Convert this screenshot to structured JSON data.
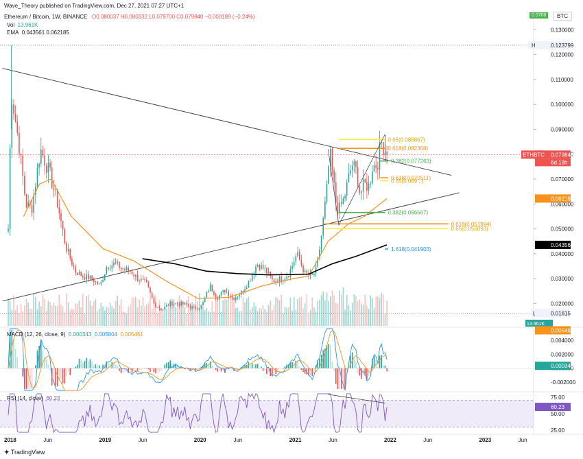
{
  "header": {
    "publisher": "Wave_Theory published on TradingView.com, Dec 27, 2021 07:27 UTC+1",
    "symbol": "Ethereum / Bitcoin, 1W, BINANCE",
    "ohlc": "O0.080037  H0.080332  L0.079700  C0.079840  −0.000189 (−0.24%)",
    "vol_label": "Vol",
    "vol_value": "13.961K",
    "ema_label": "EMA",
    "ema_values": "0.043561  0.062185",
    "currency": "BTC",
    "top_badge": "0.0706"
  },
  "macd_header": {
    "label": "MACD (12, 26, close, 9)",
    "v1": "0.000343",
    "v2": "0.005804",
    "v3": "0.005461"
  },
  "rsi_header": {
    "label": "RSI (14, close)",
    "value": "60.23"
  },
  "footer": {
    "brand": "TradingView"
  },
  "chart_data": [
    {
      "type": "candlestick",
      "title": "Ethereum / Bitcoin, 1W, BINANCE",
      "ylim": [
        0.011,
        0.137
      ],
      "y_ticks": [
        "0.130000",
        "0.120000",
        "0.110000",
        "0.100000",
        "0.090000",
        "0.080000",
        "0.070000",
        "0.060000",
        "0.050000",
        "0.040000",
        "0.030000",
        "0.020000"
      ],
      "x_ticks": [
        "2018",
        "Jun",
        "2019",
        "Jun",
        "2020",
        "Jun",
        "2021",
        "Jun",
        "2022",
        "Jun",
        "2023",
        "Jun"
      ],
      "anchors_close": [
        [
          "2018-01-01",
          0.05
        ],
        [
          "2018-01-13",
          0.105
        ],
        [
          "2018-02-10",
          0.085
        ],
        [
          "2018-03-10",
          0.06
        ],
        [
          "2018-04-01",
          0.058
        ],
        [
          "2018-05-05",
          0.082
        ],
        [
          "2018-06-10",
          0.072
        ],
        [
          "2018-07-10",
          0.06
        ],
        [
          "2018-08-10",
          0.043
        ],
        [
          "2018-09-15",
          0.033
        ],
        [
          "2018-10-15",
          0.031
        ],
        [
          "2018-11-20",
          0.03
        ],
        [
          "2018-12-20",
          0.027
        ],
        [
          "2019-01-15",
          0.035
        ],
        [
          "2019-02-15",
          0.036
        ],
        [
          "2019-03-15",
          0.034
        ],
        [
          "2019-04-15",
          0.033
        ],
        [
          "2019-05-15",
          0.03
        ],
        [
          "2019-06-15",
          0.028
        ],
        [
          "2019-07-15",
          0.02
        ],
        [
          "2019-08-15",
          0.0175
        ],
        [
          "2019-09-15",
          0.02
        ],
        [
          "2019-10-15",
          0.02
        ],
        [
          "2019-11-15",
          0.0195
        ],
        [
          "2019-12-15",
          0.018
        ],
        [
          "2020-01-15",
          0.019
        ],
        [
          "2020-02-15",
          0.027
        ],
        [
          "2020-03-15",
          0.0225
        ],
        [
          "2020-04-15",
          0.0255
        ],
        [
          "2020-05-15",
          0.022
        ],
        [
          "2020-06-15",
          0.0245
        ],
        [
          "2020-07-15",
          0.029
        ],
        [
          "2020-08-15",
          0.036
        ],
        [
          "2020-09-15",
          0.0335
        ],
        [
          "2020-10-15",
          0.029
        ],
        [
          "2020-11-15",
          0.03
        ],
        [
          "2020-12-15",
          0.032
        ],
        [
          "2021-01-15",
          0.04
        ],
        [
          "2021-02-15",
          0.032
        ],
        [
          "2021-03-15",
          0.031
        ],
        [
          "2021-04-01",
          0.034
        ],
        [
          "2021-04-20",
          0.048
        ],
        [
          "2021-05-15",
          0.07
        ],
        [
          "2021-05-20",
          0.082
        ],
        [
          "2021-06-15",
          0.06
        ],
        [
          "2021-06-25",
          0.0575
        ],
        [
          "2021-07-15",
          0.062
        ],
        [
          "2021-08-01",
          0.07
        ],
        [
          "2021-08-15",
          0.076
        ],
        [
          "2021-09-01",
          0.073
        ],
        [
          "2021-09-15",
          0.064
        ],
        [
          "2021-10-01",
          0.068
        ],
        [
          "2021-10-20",
          0.067
        ],
        [
          "2021-11-01",
          0.075
        ],
        [
          "2021-11-20",
          0.076
        ],
        [
          "2021-12-05",
          0.085
        ],
        [
          "2021-12-27",
          0.0798
        ]
      ],
      "last": {
        "open": 0.080037,
        "high": 0.080332,
        "low": 0.0797,
        "close": 0.07984
      },
      "high_line": {
        "label": "High",
        "value": 0.123799
      },
      "low_line": {
        "label": "Low",
        "value": 0.01615
      },
      "price_labels": [
        {
          "name": "ETHBTC",
          "value": "0.079840",
          "sub": "6d 18h",
          "color": "#ef5350"
        },
        {
          "name": "EMA 1",
          "value": "0.062185",
          "color": "#f7931a"
        },
        {
          "name": "EMA 2",
          "value": "0.043561",
          "color": "#000000"
        }
      ],
      "ema_fast": {
        "name": "EMA",
        "value": 0.062185,
        "color": "#f7931a",
        "points": [
          [
            "2018-03-01",
            0.055
          ],
          [
            "2018-05-01",
            0.068
          ],
          [
            "2018-06-15",
            0.07
          ],
          [
            "2018-09-01",
            0.055
          ],
          [
            "2019-01-01",
            0.042
          ],
          [
            "2019-05-01",
            0.037
          ],
          [
            "2019-09-01",
            0.029
          ],
          [
            "2020-01-01",
            0.022
          ],
          [
            "2020-05-01",
            0.0225
          ],
          [
            "2020-09-01",
            0.027
          ],
          [
            "2021-01-01",
            0.03
          ],
          [
            "2021-03-01",
            0.031
          ],
          [
            "2021-05-15",
            0.045
          ],
          [
            "2021-08-01",
            0.052
          ],
          [
            "2021-10-01",
            0.055
          ],
          [
            "2021-12-27",
            0.062185
          ]
        ]
      },
      "ema_slow": {
        "name": "EMA",
        "value": 0.043561,
        "color": "#000000",
        "points": [
          [
            "2019-06-01",
            0.038
          ],
          [
            "2019-10-01",
            0.036
          ],
          [
            "2020-02-01",
            0.033
          ],
          [
            "2020-06-01",
            0.032
          ],
          [
            "2020-10-01",
            0.0315
          ],
          [
            "2021-03-01",
            0.0318
          ],
          [
            "2021-06-01",
            0.036
          ],
          [
            "2021-09-01",
            0.039
          ],
          [
            "2021-12-27",
            0.043561
          ]
        ]
      },
      "trendlines": [
        {
          "from": [
            "2017-12-10",
            0.1145
          ],
          "to": [
            "2022-09-01",
            0.0715
          ],
          "color": "#363a45"
        },
        {
          "from": [
            "2017-12-10",
            0.021
          ],
          "to": [
            "2022-10-01",
            0.0645
          ],
          "color": "#363a45"
        }
      ],
      "fib_levels": [
        {
          "label": "0.65(0.085867)",
          "value": 0.085867,
          "from": "2021-06-25",
          "to": "2021-12-20",
          "color": "#ffeb3b"
        },
        {
          "label": "0.618(0.082368)",
          "value": 0.082368,
          "from": "2021-06-25",
          "to": "2021-12-20",
          "color": "#f7931a"
        },
        {
          "label": "0.382(0.077263)",
          "value": 0.077263,
          "from": "2021-12-01",
          "to": "2022-01-01",
          "color": "#4caf50"
        },
        {
          "label": "0.618(0.070511)",
          "value": 0.070511,
          "from": "2021-12-01",
          "to": "2022-01-01",
          "color": "#f7931a"
        },
        {
          "label": "0.65(0.069...)",
          "value": 0.0693,
          "from": "2021-12-01",
          "to": "2022-01-01",
          "color": "#ffeb3b"
        },
        {
          "label": "0.382(0.056567)",
          "value": 0.056567,
          "from": "2021-06-25",
          "to": "2021-12-20",
          "color": "#4caf50"
        },
        {
          "label": "0.618(0.051994)",
          "value": 0.051994,
          "from": "2021-05-01",
          "to": "2022-08-20",
          "color": "#f7931a"
        },
        {
          "label": "0.65(0.050093)",
          "value": 0.050093,
          "from": "2021-05-01",
          "to": "2022-08-20",
          "color": "#ffeb3b"
        },
        {
          "label": "1.618(0.041903)",
          "value": 0.041903,
          "from": "2021-12-20",
          "to": "2022-01-01",
          "color": "#2196f3"
        }
      ],
      "volume": {
        "last": "13.961K"
      }
    },
    {
      "type": "macd",
      "title": "MACD (12, 26, close, 9)",
      "ylim": [
        -0.0033,
        0.0058
      ],
      "y_ticks": [
        "0.004000",
        "0.002000",
        "0.000000",
        "-0.002000"
      ],
      "values": {
        "histogram": 0.000343,
        "macd": 0.005804,
        "signal": 0.005461
      },
      "price_labels": [
        {
          "value": "0.005461",
          "color": "#f7931a"
        },
        {
          "value": "0.000343",
          "color": "#26a69a"
        }
      ]
    },
    {
      "type": "rsi",
      "title": "RSI (14, close)",
      "ylim": [
        20,
        82
      ],
      "y_ticks": [
        "75.00",
        "50.00",
        "25.00"
      ],
      "band": [
        30,
        70
      ],
      "value": 60.23
    }
  ]
}
